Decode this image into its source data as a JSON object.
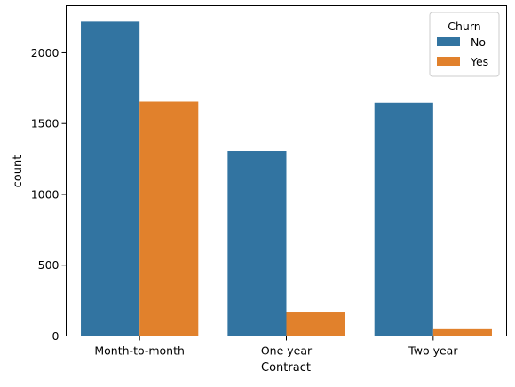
{
  "chart_data": {
    "type": "bar",
    "categories": [
      "Month-to-month",
      "One year",
      "Two year"
    ],
    "series": [
      {
        "name": "No",
        "values": [
          2220,
          1307,
          1647
        ],
        "color": "#3274a1"
      },
      {
        "name": "Yes",
        "values": [
          1655,
          166,
          48
        ],
        "color": "#e1812c"
      }
    ],
    "xlabel": "Contract",
    "ylabel": "count",
    "ylim": [
      0,
      2332
    ],
    "yticks": [
      0,
      500,
      1000,
      1500,
      2000
    ],
    "ytick_labels": [
      "0",
      "500",
      "1000",
      "1500",
      "2000"
    ],
    "grid": false,
    "legend": {
      "title": "Churn",
      "position": "top-right"
    }
  }
}
